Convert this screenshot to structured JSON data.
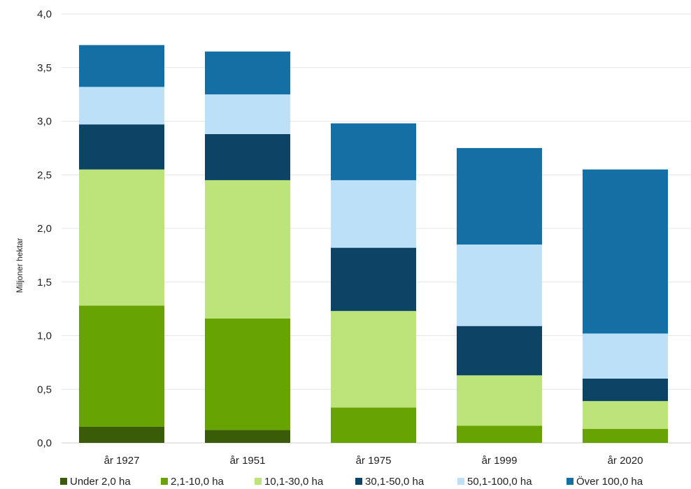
{
  "chart_data": {
    "type": "bar",
    "stacked": true,
    "title": "",
    "xlabel": "",
    "ylabel": "Miljoner hektar",
    "ylim": [
      0,
      4.0
    ],
    "yticks": [
      "0,0",
      "0,5",
      "1,0",
      "1,5",
      "2,0",
      "2,5",
      "3,0",
      "3,5",
      "4,0"
    ],
    "grid": true,
    "legend_position": "bottom",
    "categories": [
      "år 1927",
      "år 1951",
      "år 1975",
      "år 1999",
      "år 2020"
    ],
    "series": [
      {
        "name": "Under 2,0 ha",
        "color": "#3a5b08",
        "values": [
          0.15,
          0.12,
          0.0,
          0.0,
          0.0
        ]
      },
      {
        "name": "2,1-10,0 ha",
        "color": "#66a303",
        "values": [
          1.13,
          1.04,
          0.33,
          0.16,
          0.13
        ]
      },
      {
        "name": "10,1-30,0 ha",
        "color": "#bde37b",
        "values": [
          1.27,
          1.29,
          0.9,
          0.47,
          0.26
        ]
      },
      {
        "name": "30,1-50,0 ha",
        "color": "#0d4466",
        "values": [
          0.42,
          0.43,
          0.59,
          0.46,
          0.21
        ]
      },
      {
        "name": "50,1-100,0 ha",
        "color": "#bbe0f8",
        "values": [
          0.35,
          0.37,
          0.63,
          0.76,
          0.42
        ]
      },
      {
        "name": "Över 100,0 ha",
        "color": "#1470a4",
        "values": [
          0.39,
          0.4,
          0.53,
          0.9,
          1.53
        ]
      }
    ]
  }
}
